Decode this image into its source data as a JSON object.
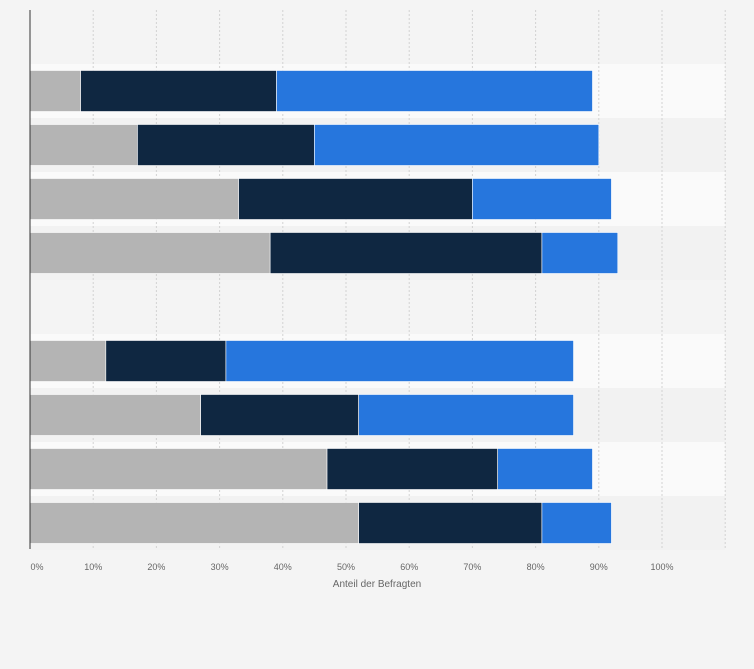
{
  "chart_data": {
    "type": "bar",
    "orientation": "horizontal",
    "stacked": true,
    "groups": [
      {
        "bars": [
          {
            "values": [
              8,
              31,
              50
            ]
          },
          {
            "values": [
              17,
              28,
              45
            ]
          },
          {
            "values": [
              33,
              37,
              22
            ]
          },
          {
            "values": [
              38,
              43,
              12
            ]
          }
        ]
      },
      {
        "bars": [
          {
            "values": [
              12,
              19,
              55
            ]
          },
          {
            "values": [
              27,
              25,
              34
            ]
          },
          {
            "values": [
              47,
              27,
              15
            ]
          },
          {
            "values": [
              52,
              29,
              11
            ]
          }
        ]
      }
    ],
    "series_colors": [
      "#b4b4b4",
      "#0f2741",
      "#2676dd"
    ],
    "xlabel": "Anteil der Befragten",
    "xticks": [
      "0%",
      "10%",
      "20%",
      "30%",
      "40%",
      "50%",
      "60%",
      "70%",
      "80%",
      "90%",
      "100%"
    ],
    "xlim": [
      0,
      110
    ],
    "grid": true,
    "legend": "none"
  }
}
